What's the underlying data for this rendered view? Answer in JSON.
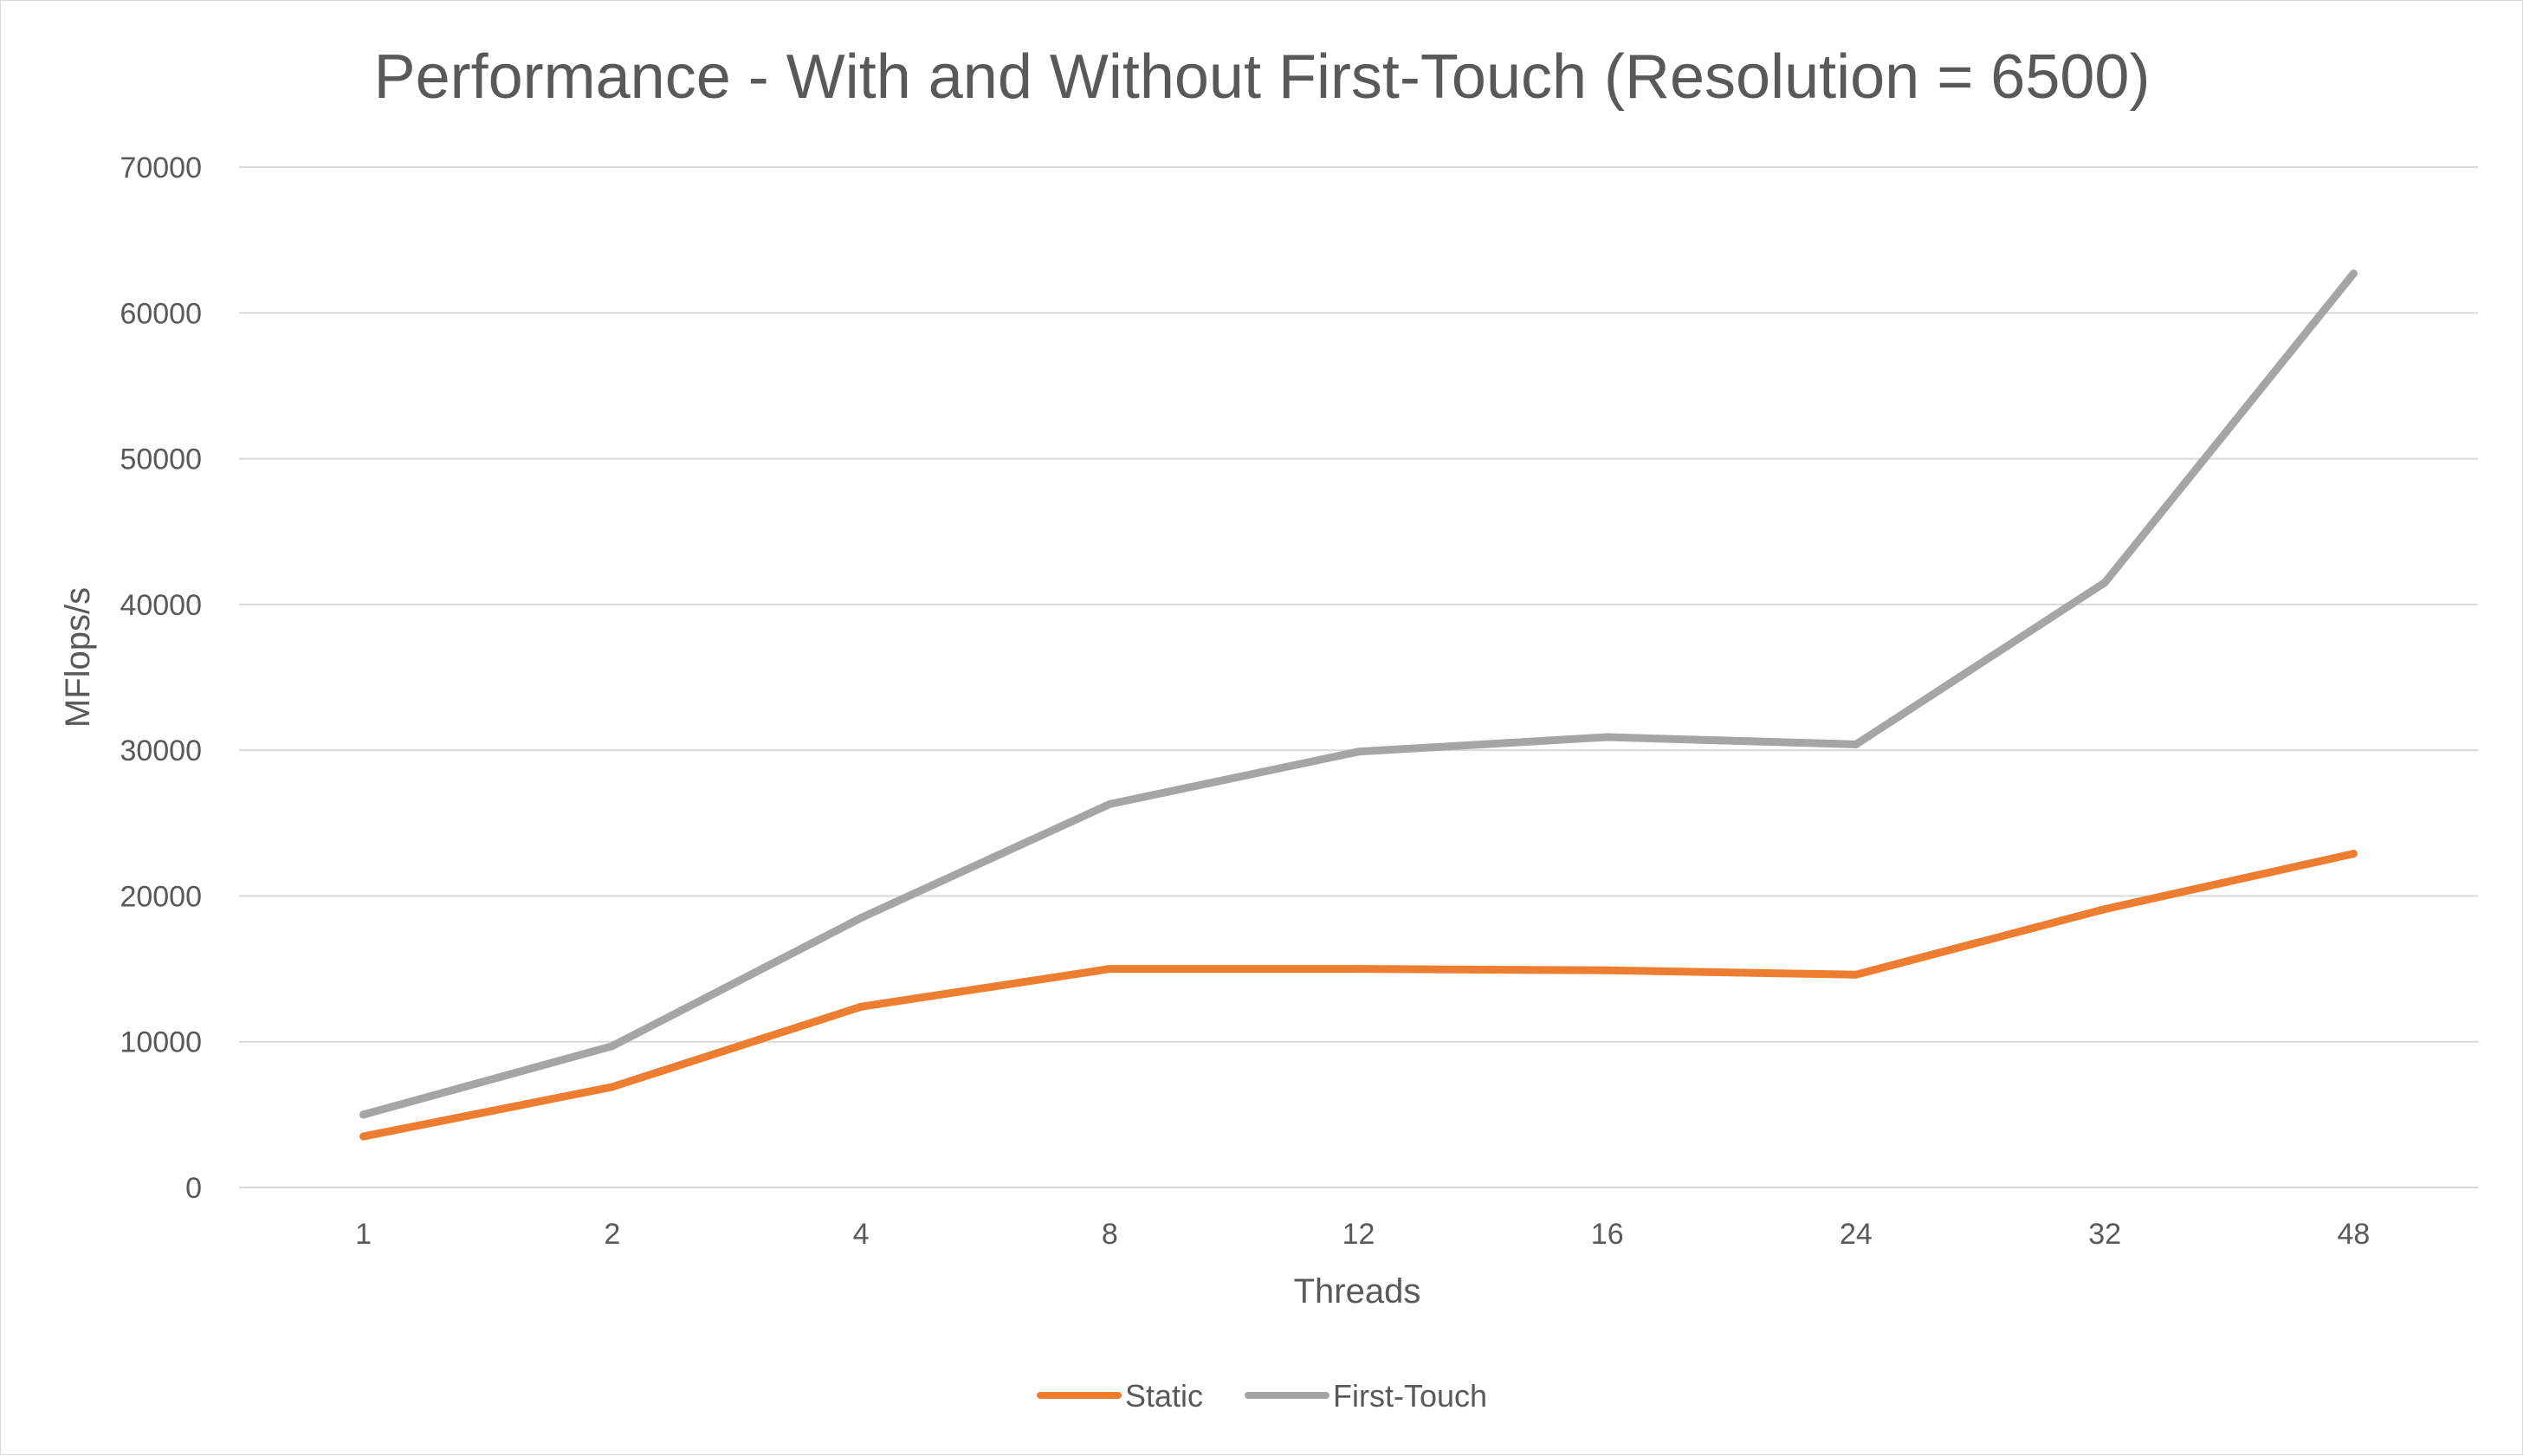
{
  "chart_data": {
    "type": "line",
    "title": "Performance - With and Without First-Touch (Resolution = 6500)",
    "xlabel": "Threads",
    "ylabel": "MFlops/s",
    "categories": [
      "1",
      "2",
      "4",
      "8",
      "12",
      "16",
      "24",
      "32",
      "48"
    ],
    "ylim": [
      0,
      70000
    ],
    "yticks": [
      0,
      10000,
      20000,
      30000,
      40000,
      50000,
      60000,
      70000
    ],
    "grid": true,
    "legend_position": "bottom",
    "series": [
      {
        "name": "Static",
        "color": "#ed7d31",
        "values": [
          3500,
          6900,
          12400,
          15000,
          15000,
          14900,
          14600,
          19100,
          22900
        ]
      },
      {
        "name": "First-Touch",
        "color": "#a5a5a5",
        "values": [
          5000,
          9700,
          18500,
          26300,
          29900,
          30900,
          30400,
          41500,
          62700
        ]
      }
    ]
  }
}
